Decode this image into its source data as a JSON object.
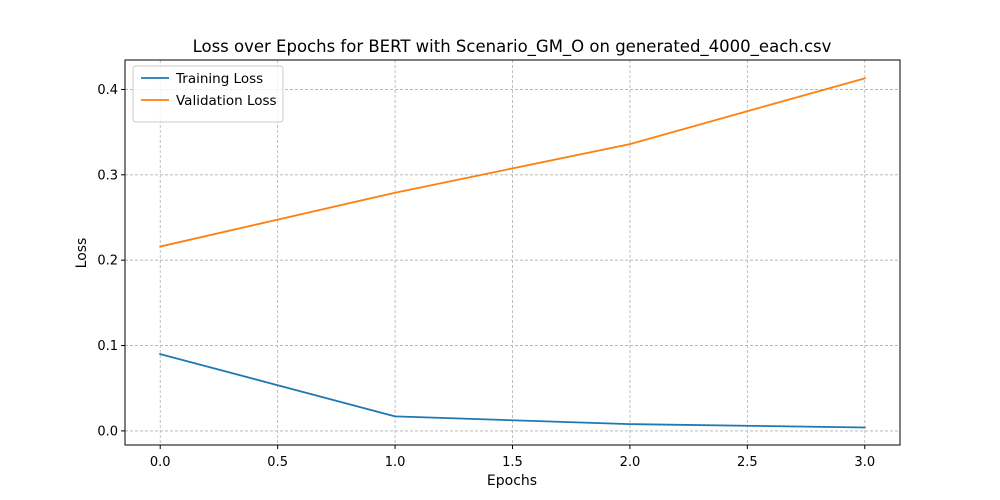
{
  "chart_data": {
    "type": "line",
    "title": "Loss over Epochs for BERT with Scenario_GM_O on generated_4000_each.csv",
    "xlabel": "Epochs",
    "ylabel": "Loss",
    "xlim": [
      -0.15,
      3.15
    ],
    "ylim": [
      -0.0165,
      0.4345
    ],
    "xticks": [
      0.0,
      0.5,
      1.0,
      1.5,
      2.0,
      2.5,
      3.0
    ],
    "xtick_labels": [
      "0.0",
      "0.5",
      "1.0",
      "1.5",
      "2.0",
      "2.5",
      "3.0"
    ],
    "yticks": [
      0.0,
      0.1,
      0.2,
      0.3,
      0.4
    ],
    "ytick_labels": [
      "0.0",
      "0.1",
      "0.2",
      "0.3",
      "0.4"
    ],
    "grid": true,
    "legend_position": "upper-left",
    "x": [
      0,
      1,
      2,
      3
    ],
    "series": [
      {
        "name": "Training Loss",
        "color": "#1f77b4",
        "values": [
          0.09,
          0.017,
          0.008,
          0.004
        ]
      },
      {
        "name": "Validation Loss",
        "color": "#ff7f0e",
        "values": [
          0.216,
          0.279,
          0.336,
          0.413
        ]
      }
    ]
  }
}
